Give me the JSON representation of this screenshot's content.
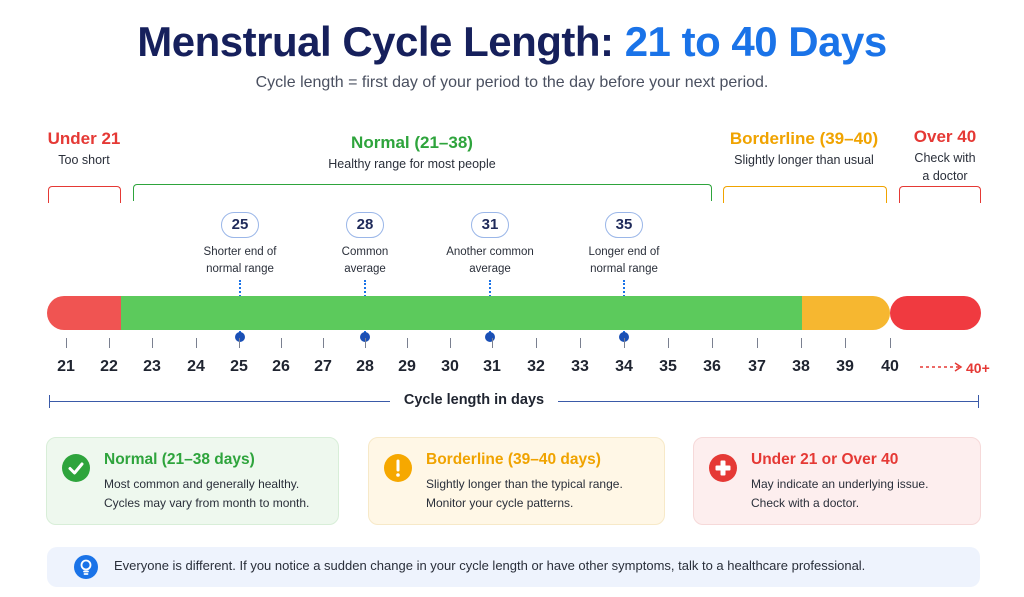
{
  "title_main": "Menstrual Cycle Length:",
  "title_accent": "21 to 40 Days",
  "subtitle": "Cycle length = first day of your period to the day before your next period.",
  "segments": [
    {
      "label": "Under 21",
      "desc": [
        "Too short"
      ],
      "color": "#e53935"
    },
    {
      "label": "Normal (21–38)",
      "desc": [
        "Healthy range for most people"
      ],
      "color": "#2ea43c"
    },
    {
      "label": "Borderline (39–40)",
      "desc": [
        "Slightly longer than usual"
      ],
      "color": "#f0a300"
    },
    {
      "label": "Over 40",
      "desc": [
        "Check with",
        "a doctor"
      ],
      "color": "#e53935"
    }
  ],
  "markers": [
    {
      "day": "25",
      "desc": [
        "Shorter end of",
        "normal range"
      ]
    },
    {
      "day": "28",
      "desc": [
        "Common",
        "average"
      ]
    },
    {
      "day": "31",
      "desc": [
        "Another common",
        "average"
      ]
    },
    {
      "day": "35",
      "desc": [
        "Longer end of",
        "normal range"
      ]
    }
  ],
  "bar_colors": {
    "red": "#f05452",
    "green": "#5cca5c",
    "amber": "#f6b730"
  },
  "ticks": [
    "21",
    "22",
    "23",
    "24",
    "25",
    "26",
    "27",
    "28",
    "29",
    "30",
    "31",
    "32",
    "33",
    "34",
    "35",
    "36",
    "37",
    "38",
    "39",
    "40"
  ],
  "tick_over": "40+",
  "axis_label": "Cycle length in days",
  "cards": [
    {
      "icon": "check-icon",
      "title": "Normal (21–38 days)",
      "lines": [
        "Most common and generally healthy.",
        "Cycles may vary from month to month."
      ],
      "color": "#2ea43c"
    },
    {
      "icon": "exclamation-icon",
      "title": "Borderline (39–40 days)",
      "lines": [
        "Slightly longer than the typical range.",
        "Monitor your cycle patterns."
      ],
      "color": "#f0a300"
    },
    {
      "icon": "medical-cross-icon",
      "title": "Under 21 or Over 40",
      "lines": [
        "May indicate an underlying issue.",
        "Check with a doctor."
      ],
      "color": "#e53935"
    }
  ],
  "note": {
    "icon": "lightbulb-icon",
    "text": "Everyone is different. If you notice a sudden change in your cycle length or have other symptoms, talk to a healthcare professional."
  }
}
